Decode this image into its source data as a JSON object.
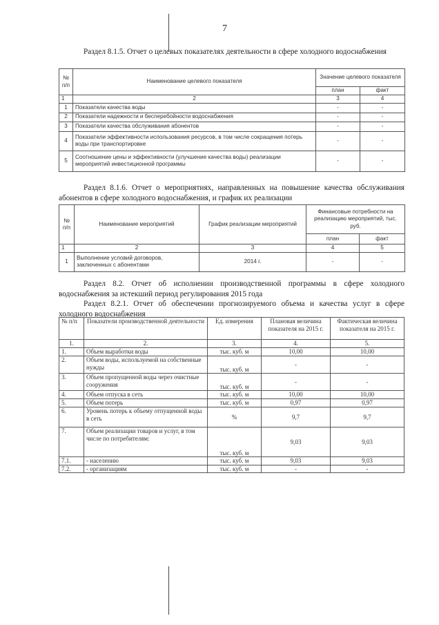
{
  "page_number": "7",
  "section_815": {
    "heading": "Раздел 8.1.5. Отчет о целевых показателях деятельности в сфере холодного водоснабжения",
    "headers": {
      "num": "№ п/п",
      "name": "Наименование целевого показателя",
      "value": "Значение целевого показателя",
      "plan": "план",
      "fact": "факт"
    },
    "index_row": [
      "1",
      "2",
      "3",
      "4"
    ],
    "rows": [
      {
        "num": "1",
        "name": "Показатели качества воды",
        "plan": "-",
        "fact": "-"
      },
      {
        "num": "2",
        "name": "Показатели надежности и бесперебойности водоснабжения",
        "plan": "-",
        "fact": "-"
      },
      {
        "num": "3",
        "name": "Показатели качества обслуживания абонентов",
        "plan": "-",
        "fact": "-"
      },
      {
        "num": "4",
        "name": "Показатели эффективности использования ресурсов, в том числе сокращения потерь воды при транспортировке",
        "plan": "-",
        "fact": "-"
      },
      {
        "num": "5",
        "name": "Соотношение цены и эффективности (улучшение качества воды) реализации мероприятий инвестиционной программы",
        "plan": "-",
        "fact": "-"
      }
    ]
  },
  "section_816": {
    "heading": "Раздел 8.1.6. Отчет о мероприятиях, направленных на повышение качества обслуживания абонентов в сфере холодного водоснабжения, и график их реализации",
    "headers": {
      "num": "№ п/п",
      "name": "Наименование мероприятий",
      "schedule": "График реализации мероприятий",
      "finance": "Финансовые потребности на реализацию мероприятий, тыс. руб.",
      "plan": "план",
      "fact": "факт"
    },
    "index_row": [
      "1",
      "2",
      "3",
      "4",
      "5"
    ],
    "rows": [
      {
        "num": "1",
        "name": "Выполнение условий договоров, заключенных с абонентами",
        "schedule": "2014 г.",
        "plan": "-",
        "fact": "-"
      }
    ]
  },
  "section_82": {
    "heading": "Раздел 8.2. Отчет об исполнении производственной программы в сфере холодного водоснабжения за истекший период регулирования 2015 года"
  },
  "section_821": {
    "heading": "Раздел 8.2.1. Отчет об обеспечении прогнозируемого объема и качества услуг в сфере холодного водоснабжения",
    "headers": {
      "num": "№ п/п",
      "name": "Показатели производственной деятельности",
      "unit": "Ед. измерения",
      "plan": "Плановая величина показателя на 2015 г.",
      "fact": "Фактическая величина показателя на 2015 г."
    },
    "index_row": [
      "1.",
      "2.",
      "3.",
      "4.",
      "5."
    ],
    "rows": [
      {
        "num": "1.",
        "name": "Объем выработки воды",
        "unit": "тыс. куб. м",
        "plan": "10,00",
        "fact": "10,00"
      },
      {
        "num": "2.",
        "name": "Объем воды, используемой на собственные нужды",
        "unit": "тыс. куб. м",
        "plan": "-",
        "fact": "-"
      },
      {
        "num": "3.",
        "name": "Объем пропущенной воды через очистные сооружения",
        "unit": "тыс. куб. м",
        "plan": "-",
        "fact": "-"
      },
      {
        "num": "4.",
        "name": "Объем отпуска в сеть",
        "unit": "тыс. куб. м",
        "plan": "10,00",
        "fact": "10,00"
      },
      {
        "num": "5.",
        "name": "Объем потерь",
        "unit": "тыс. куб. м",
        "plan": "0,97",
        "fact": "0,97"
      },
      {
        "num": "6.",
        "name": "Уровень потерь к объему отпущенной воды в сеть",
        "unit": "%",
        "plan": "9,7",
        "fact": "9,7"
      },
      {
        "num": "7.",
        "name": "Объем реализации товаров и услуг, в том числе по потребителям:",
        "unit": "тыс. куб. м",
        "plan": "9,03",
        "fact": "9,03"
      },
      {
        "num": "7.1.",
        "name": "- населению",
        "unit": "тыс. куб. м",
        "plan": "9,03",
        "fact": "9,03"
      },
      {
        "num": "7.2.",
        "name": "- организациям",
        "unit": "тыс. куб. м",
        "plan": "-",
        "fact": "-"
      }
    ]
  }
}
